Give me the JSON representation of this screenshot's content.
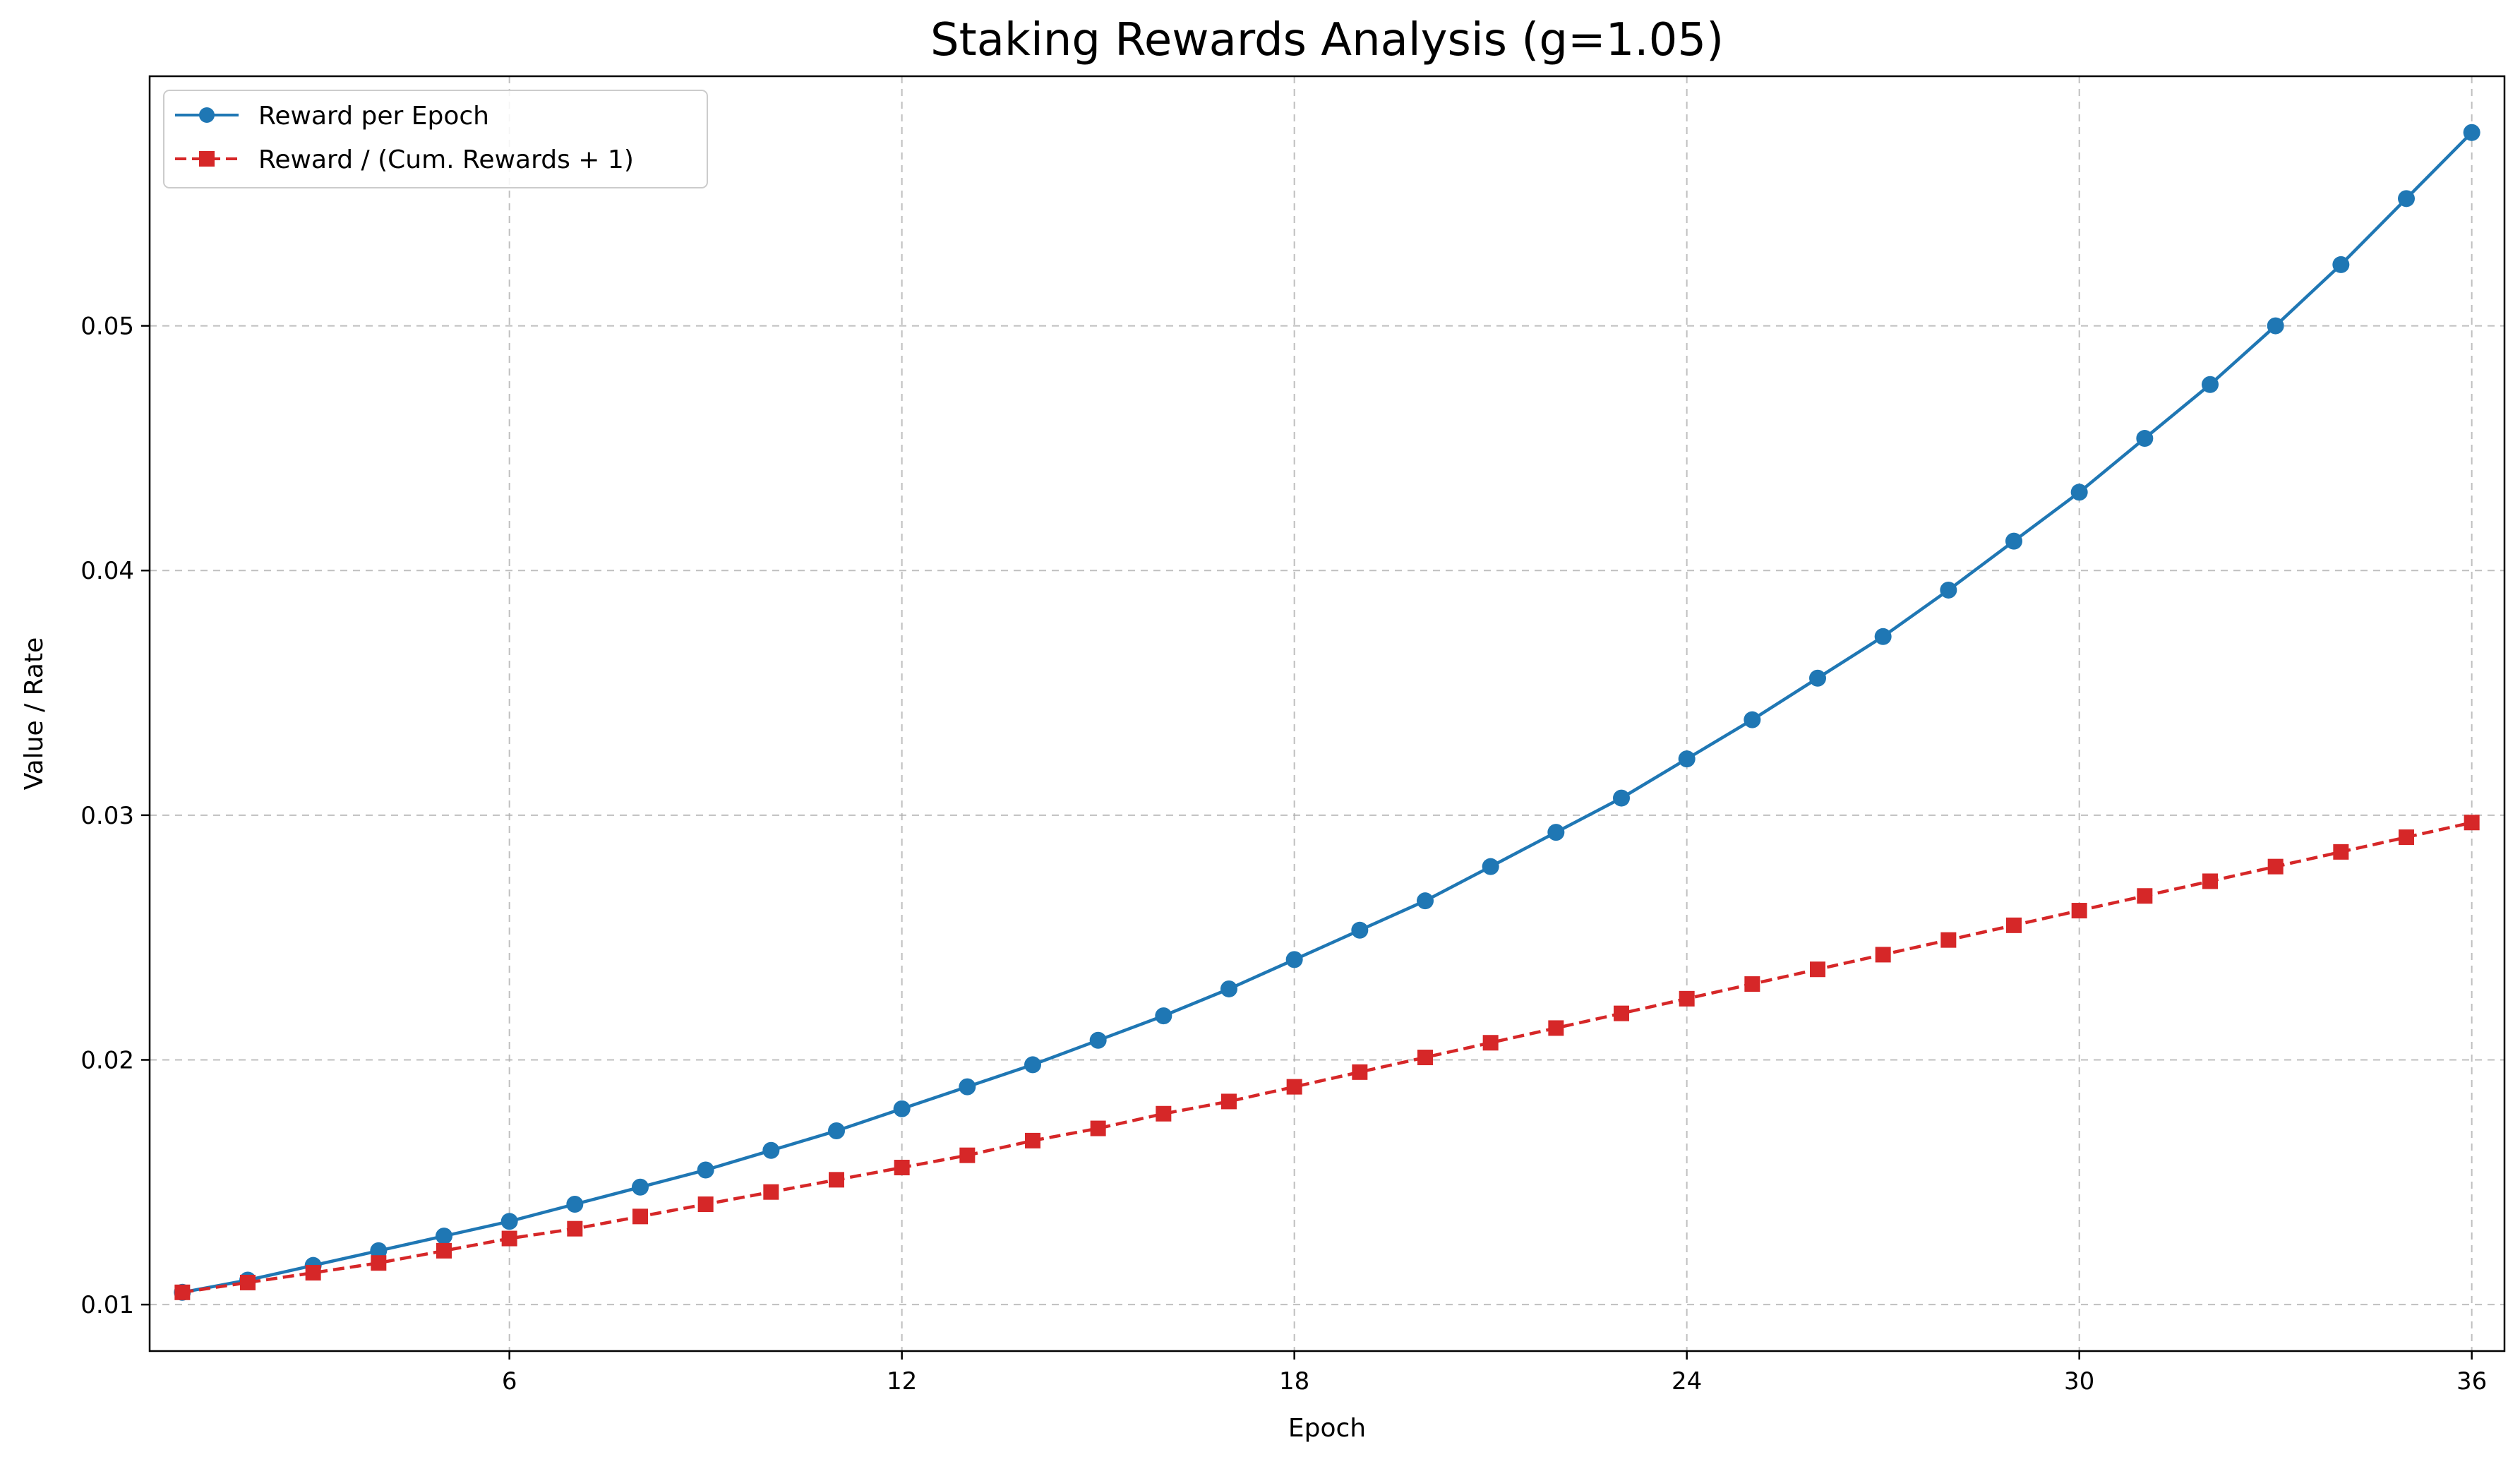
{
  "chart_data": {
    "type": "line",
    "title": "Staking Rewards Analysis (g=1.05)",
    "xlabel": "Epoch",
    "ylabel": "Value / Rate",
    "xlim": [
      0.5,
      36.5
    ],
    "ylim": [
      0.0081,
      0.0602
    ],
    "xticks": [
      6,
      12,
      18,
      24,
      30,
      36
    ],
    "xtick_labels": [
      "6",
      "12",
      "18",
      "24",
      "30",
      "36"
    ],
    "yticks": [
      0.01,
      0.02,
      0.03,
      0.04,
      0.05
    ],
    "ytick_labels": [
      "0.01",
      "0.02",
      "0.03",
      "0.04",
      "0.05"
    ],
    "grid": true,
    "legend_position": "top-left",
    "x": [
      1,
      2,
      3,
      4,
      5,
      6,
      7,
      8,
      9,
      10,
      11,
      12,
      13,
      14,
      15,
      16,
      17,
      18,
      19,
      20,
      21,
      22,
      23,
      24,
      25,
      26,
      27,
      28,
      29,
      30,
      31,
      32,
      33,
      34,
      35,
      36
    ],
    "series": [
      {
        "name": "Reward per Epoch",
        "color": "#1f77b4",
        "line_style": "solid",
        "marker": "circle",
        "values": [
          0.0105,
          0.011,
          0.0116,
          0.0122,
          0.0128,
          0.0134,
          0.0141,
          0.0148,
          0.0155,
          0.0163,
          0.0171,
          0.018,
          0.0189,
          0.0198,
          0.0208,
          0.0218,
          0.0229,
          0.0241,
          0.0253,
          0.0265,
          0.0279,
          0.0293,
          0.0307,
          0.0323,
          0.0339,
          0.0356,
          0.0373,
          0.0392,
          0.0412,
          0.0432,
          0.0454,
          0.0476,
          0.05,
          0.0525,
          0.0552,
          0.0579
        ]
      },
      {
        "name": "Reward / (Cum. Rewards + 1)",
        "color": "#d62728",
        "line_style": "dashed",
        "marker": "square",
        "values": [
          0.0105,
          0.0109,
          0.0113,
          0.0117,
          0.0122,
          0.0127,
          0.0131,
          0.0136,
          0.0141,
          0.0146,
          0.0151,
          0.0156,
          0.0161,
          0.0167,
          0.0172,
          0.0178,
          0.0183,
          0.0189,
          0.0195,
          0.0201,
          0.0207,
          0.0213,
          0.0219,
          0.0225,
          0.0231,
          0.0237,
          0.0243,
          0.0249,
          0.0255,
          0.0261,
          0.0267,
          0.0273,
          0.0279,
          0.0285,
          0.0291,
          0.0297
        ]
      }
    ]
  }
}
